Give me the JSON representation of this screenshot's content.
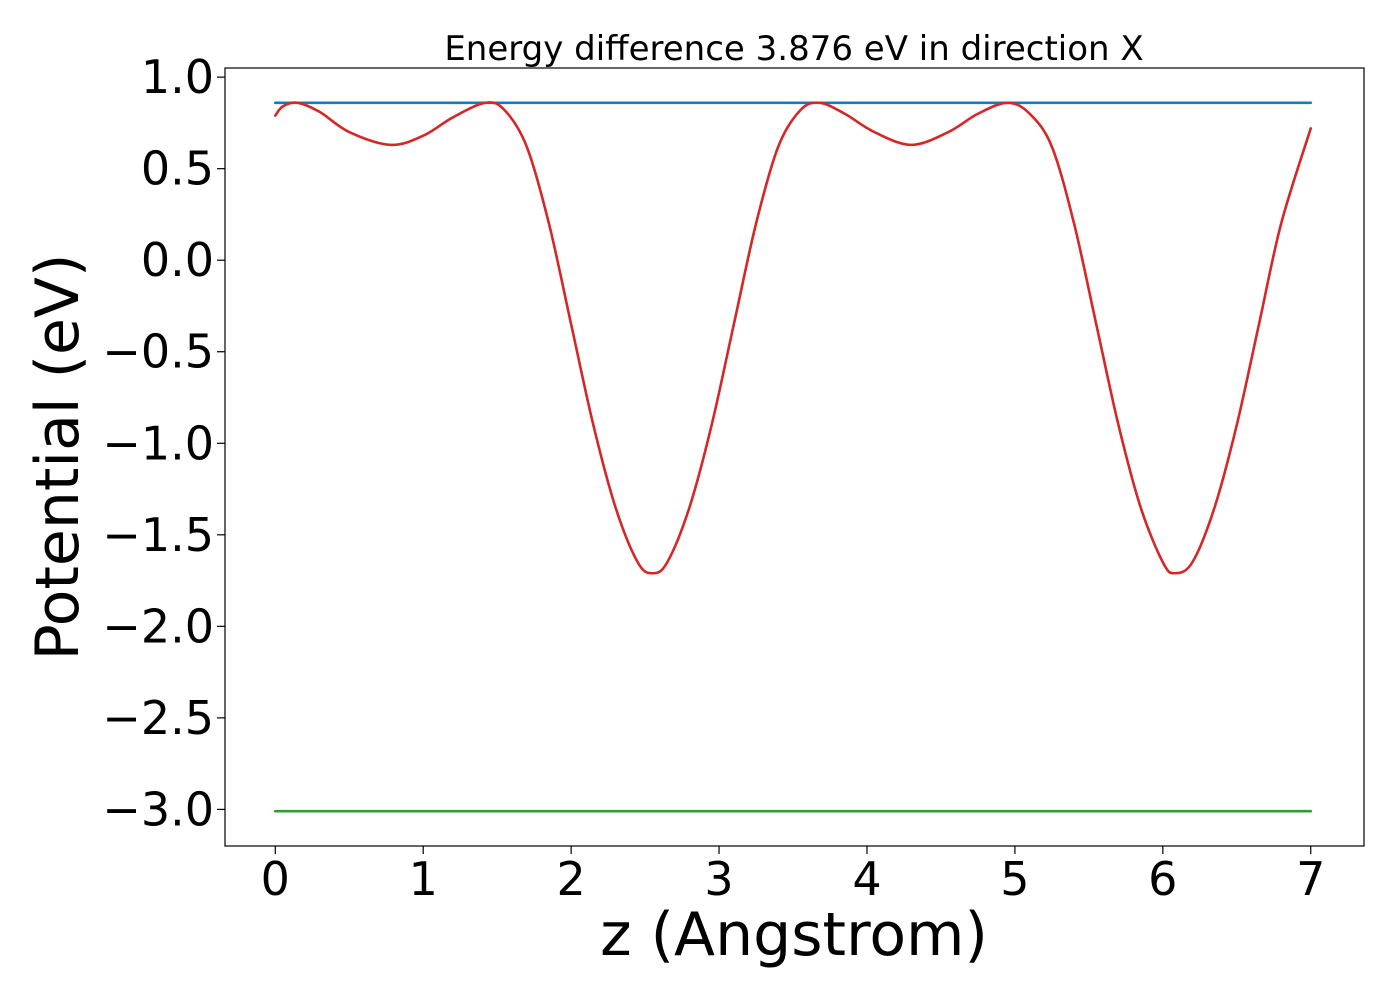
{
  "chart_data": {
    "type": "line",
    "title": "Energy difference 3.876 eV in direction X",
    "xlabel": "z (Angstrom)",
    "ylabel": "Potential (eV)",
    "xlim": [
      -0.34,
      7.36
    ],
    "ylim": [
      -3.2,
      1.05
    ],
    "xticks": [
      0,
      1,
      2,
      3,
      4,
      5,
      6,
      7
    ],
    "yticks": [
      1.0,
      0.5,
      0.0,
      -0.5,
      -1.0,
      -1.5,
      -2.0,
      -2.5,
      -3.0
    ],
    "xtick_labels": [
      "0",
      "1",
      "2",
      "3",
      "4",
      "5",
      "6",
      "7"
    ],
    "ytick_labels": [
      "1.0",
      "0.5",
      "0.0",
      "−0.5",
      "−1.0",
      "−1.5",
      "−2.0",
      "−2.5",
      "−3.0"
    ],
    "grid": false,
    "legend": "none",
    "series": [
      {
        "color": "#1f77b4",
        "style": "constant",
        "x": [
          0,
          7
        ],
        "y": [
          0.86,
          0.86
        ]
      },
      {
        "color": "#2ca02c",
        "style": "constant",
        "x": [
          0,
          7
        ],
        "y": [
          -3.01,
          -3.01
        ]
      },
      {
        "color": "#d62728",
        "style": "curve",
        "x": [
          0.0,
          0.05,
          0.15,
          0.3,
          0.5,
          0.78,
          1.0,
          1.2,
          1.42,
          1.55,
          1.7,
          1.85,
          2.0,
          2.15,
          2.3,
          2.45,
          2.55,
          2.65,
          2.8,
          2.95,
          3.1,
          3.25,
          3.4,
          3.55,
          3.68,
          3.85,
          4.05,
          4.3,
          4.55,
          4.75,
          4.95,
          5.1,
          5.25,
          5.4,
          5.55,
          5.7,
          5.85,
          6.0,
          6.08,
          6.2,
          6.35,
          6.5,
          6.65,
          6.8,
          7.0
        ],
        "y": [
          0.79,
          0.84,
          0.86,
          0.81,
          0.7,
          0.63,
          0.68,
          0.78,
          0.86,
          0.82,
          0.62,
          0.2,
          -0.35,
          -0.9,
          -1.35,
          -1.65,
          -1.71,
          -1.65,
          -1.35,
          -0.9,
          -0.35,
          0.2,
          0.62,
          0.82,
          0.86,
          0.8,
          0.7,
          0.63,
          0.7,
          0.8,
          0.86,
          0.8,
          0.62,
          0.2,
          -0.35,
          -0.9,
          -1.35,
          -1.65,
          -1.71,
          -1.65,
          -1.35,
          -0.9,
          -0.35,
          0.2,
          0.72
        ]
      }
    ]
  }
}
